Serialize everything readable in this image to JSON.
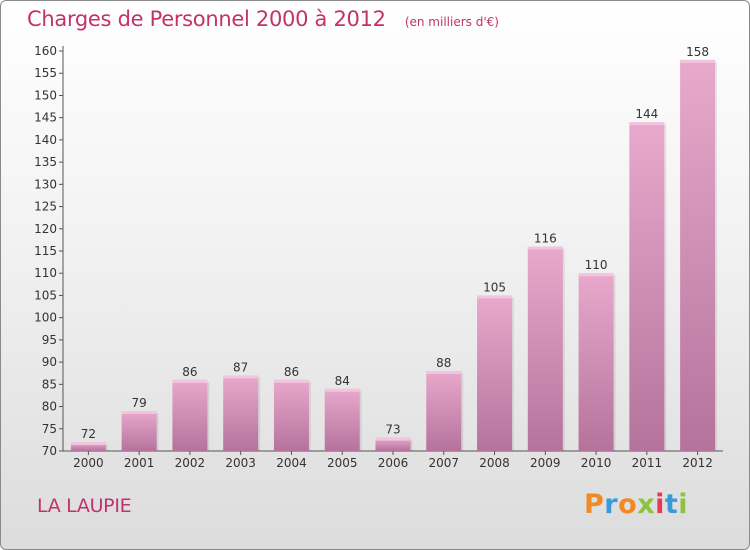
{
  "header": {
    "title": "Charges de Personnel 2000 à 2012",
    "unit": "(en milliers d'€)"
  },
  "footer": {
    "commune": "LA LAUPIE",
    "logo_text": "Proxiti",
    "logo_colors": [
      "#f08a24",
      "#3a9ad9",
      "#f08a24",
      "#8cc43f",
      "#e63a52",
      "#3a9ad9",
      "#8cc43f"
    ]
  },
  "colors": {
    "title": "#c2336a",
    "bar_top": "#e8a9cc",
    "bar_bottom": "#b5739c",
    "axis": "#555555",
    "label": "#333333"
  },
  "chart_data": {
    "type": "bar",
    "title": "Charges de Personnel 2000 à 2012",
    "subtitle": "(en milliers d'€)",
    "categories": [
      "2000",
      "2001",
      "2002",
      "2003",
      "2004",
      "2005",
      "2006",
      "2007",
      "2008",
      "2009",
      "2010",
      "2011",
      "2012"
    ],
    "values": [
      72,
      79,
      86,
      87,
      86,
      84,
      73,
      88,
      105,
      116,
      110,
      144,
      158
    ],
    "data_labels": [
      "72",
      "79",
      "86",
      "87",
      "86",
      "84",
      "73",
      "88",
      "105",
      "116",
      "110",
      "144",
      "158"
    ],
    "ylim": [
      70,
      160
    ],
    "yticks": [
      70,
      75,
      80,
      85,
      90,
      95,
      100,
      105,
      110,
      115,
      120,
      125,
      130,
      135,
      140,
      145,
      150,
      155,
      160
    ],
    "grid": false,
    "legend": "none"
  }
}
